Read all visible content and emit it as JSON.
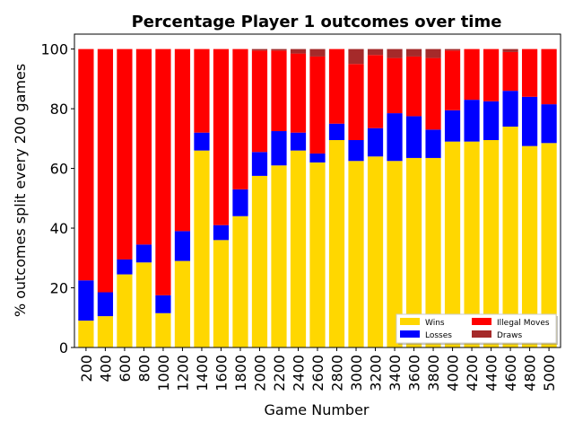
{
  "chart_data": {
    "type": "bar",
    "stacked": true,
    "title": "Percentage Player 1 outcomes over time",
    "xlabel": "Game Number",
    "ylabel": "% outcomes split every 200 games",
    "ylim": [
      0,
      105
    ],
    "yticks": [
      0,
      20,
      40,
      60,
      80,
      100
    ],
    "grid": false,
    "legend_position": "lower-right",
    "categories": [
      "200",
      "400",
      "600",
      "800",
      "1000",
      "1200",
      "1400",
      "1600",
      "1800",
      "2000",
      "2200",
      "2400",
      "2600",
      "2800",
      "3000",
      "3200",
      "3400",
      "3600",
      "3800",
      "4000",
      "4200",
      "4400",
      "4600",
      "4800",
      "5000"
    ],
    "series": [
      {
        "name": "Wins",
        "color": "#FFD700",
        "values": [
          9,
          10.5,
          24.5,
          28.5,
          11.5,
          29,
          66,
          36,
          44,
          57.5,
          61,
          66,
          62,
          69.5,
          62.5,
          64,
          62.5,
          63.5,
          63.5,
          69,
          69,
          69.5,
          74,
          67.5,
          68.5
        ]
      },
      {
        "name": "Losses",
        "color": "#0000FF",
        "values": [
          13.5,
          8,
          5,
          6,
          6,
          10,
          6,
          5,
          9,
          8,
          11.5,
          6,
          3,
          5.5,
          7,
          9.5,
          16,
          14,
          9.5,
          10.5,
          14,
          13,
          12,
          16.5,
          13
        ]
      },
      {
        "name": "Illegal Moves",
        "color": "#FF0000",
        "values": [
          77.5,
          81.5,
          70.5,
          65.5,
          82.5,
          61,
          28,
          59,
          47,
          34,
          27,
          26.5,
          32.5,
          25,
          25.5,
          24.5,
          18.5,
          20,
          24,
          20,
          17,
          17.5,
          13,
          16,
          18.5
        ]
      },
      {
        "name": "Draws",
        "color": "#A52A2A",
        "values": [
          0,
          0,
          0,
          0,
          0,
          0,
          0,
          0,
          0,
          0.5,
          0.5,
          1.5,
          2.5,
          0,
          5,
          2,
          3,
          2.5,
          3,
          0.5,
          0,
          0,
          1,
          0,
          0
        ]
      }
    ]
  }
}
